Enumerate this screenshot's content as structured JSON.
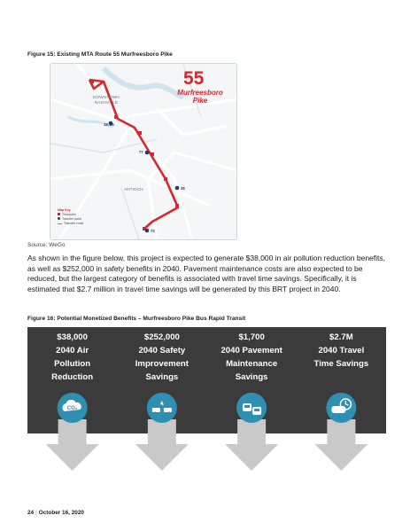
{
  "figure15": {
    "caption": "Figure 15: Existing MTA Route 55 Murfreesboro Pike",
    "route_number": "55",
    "route_name_line1": "Murfreesboro",
    "route_name_line2": "Pike",
    "map_labels": {
      "downtown_line1": "DOWNTOWN",
      "downtown_line2": "NASHVILLE",
      "antioch": "ANTIOCH",
      "connector_1": "18, 25",
      "connector_2": "77",
      "connector_3": "38",
      "connector_4": "73"
    },
    "map_key": {
      "title": "Map Key",
      "items": [
        "Timepoint",
        "Transfer point",
        "Transfer route"
      ]
    },
    "source": "Source: WeGo"
  },
  "paragraph": "As shown in the figure below, this project is expected to generate $38,000 in air pollution reduction benefits, as well as $252,000 in safety benefits in 2040. Pavement maintenance costs are also expected to be reduced, but the largest category of benefits is associated with travel time savings. Specifically, it is estimated that $2.7 million in travel time savings will be generated by this BRT project in 2040.",
  "figure16": {
    "caption": "Figure 16: Potential Monetized Benefits – Murfreesboro Pike Bus Rapid Transit",
    "benefits": [
      {
        "value": "$38,000",
        "line1": "2040 Air",
        "line2": "Pollution",
        "line3": "Reduction",
        "icon": "co2-cloud-icon",
        "icon_text": "CO₂"
      },
      {
        "value": "$252,000",
        "line1": "2040 Safety",
        "line2": "Improvement",
        "line3": "Savings",
        "icon": "car-crash-icon"
      },
      {
        "value": "$1,700",
        "line1": "2040 Pavement",
        "line2": "Maintenance",
        "line3": "Savings",
        "icon": "traffic-cars-icon"
      },
      {
        "value": "$2.7M",
        "line1": "2040 Travel",
        "line2": "Time Savings",
        "line3": "",
        "icon": "car-clock-icon"
      }
    ],
    "colors": {
      "panel": "#3b3b3b",
      "circle": "#2e8fb3",
      "arrow": "#c9c9c9",
      "text": "#ffffff"
    }
  },
  "colors": {
    "route_red": "#d7262f",
    "map_bg": "#f4f6f8",
    "road": "#ffffff",
    "water": "#cfe4ef"
  },
  "footer": {
    "page": "24",
    "date": "October 16, 2020"
  }
}
